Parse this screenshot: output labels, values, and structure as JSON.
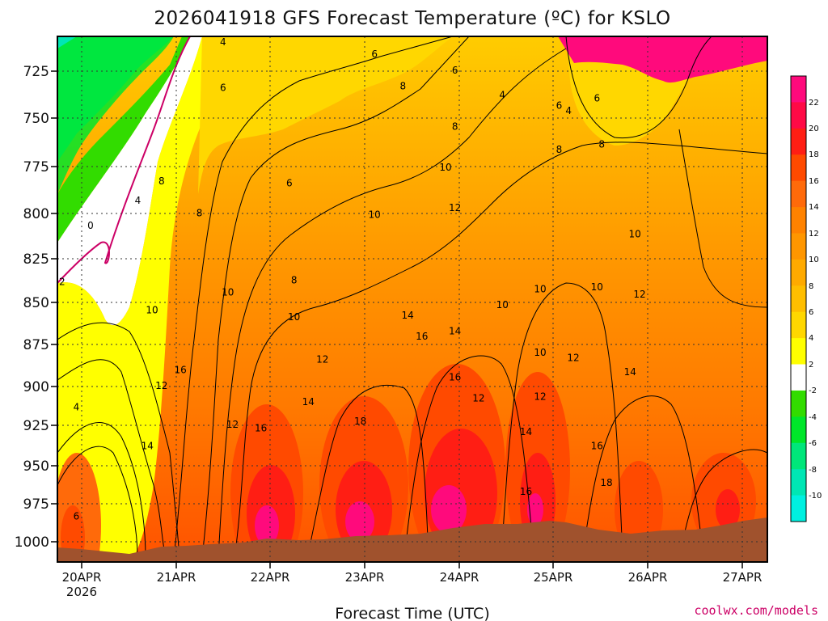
{
  "title": "2026041918 GFS Forecast Temperature (ºC) for KSLO",
  "xlabel": "Forecast Time (UTC)",
  "credit": "coolwx.com/models",
  "colors": {
    "ground": "#a0522d",
    "contour_line": "#000000",
    "zero_line": "#cc0066"
  },
  "chart_data": {
    "type": "heatmap",
    "title": "2026041918 GFS Forecast Temperature (ºC) for KSLO",
    "xlabel": "Forecast Time (UTC)",
    "ylabel": "",
    "x_tick_labels": [
      "20APR",
      "21APR",
      "22APR",
      "23APR",
      "24APR",
      "25APR",
      "26APR",
      "27APR"
    ],
    "x_tick_sublabel": "2026",
    "x_range_days": [
      -0.25,
      7.25
    ],
    "y_tick_labels": [
      "725",
      "750",
      "775",
      "800",
      "825",
      "850",
      "875",
      "900",
      "925",
      "950",
      "975",
      "1000"
    ],
    "y_values_hPa": [
      725,
      750,
      775,
      800,
      825,
      850,
      875,
      900,
      925,
      950,
      975,
      1000
    ],
    "y_range_hPa": [
      713,
      1011
    ],
    "colorbar_labels": [
      "22",
      "20",
      "18",
      "16",
      "14",
      "12",
      "10",
      "8",
      "6",
      "4",
      "2",
      "-2",
      "-4",
      "-6",
      "-8",
      "-10"
    ],
    "colorbar_bins": [
      {
        "min": 22,
        "max": 24,
        "color": "#ff0a7c"
      },
      {
        "min": 20,
        "max": 22,
        "color": "#ff0a46"
      },
      {
        "min": 18,
        "max": 20,
        "color": "#ff1e14"
      },
      {
        "min": 16,
        "max": 18,
        "color": "#ff4a00"
      },
      {
        "min": 14,
        "max": 16,
        "color": "#ff6a0a"
      },
      {
        "min": 12,
        "max": 14,
        "color": "#ff8200"
      },
      {
        "min": 10,
        "max": 12,
        "color": "#ff9600"
      },
      {
        "min": 8,
        "max": 10,
        "color": "#ffaa00"
      },
      {
        "min": 6,
        "max": 8,
        "color": "#ffbe00"
      },
      {
        "min": 4,
        "max": 6,
        "color": "#ffd700"
      },
      {
        "min": 2,
        "max": 4,
        "color": "#ffff00"
      },
      {
        "min": -2,
        "max": 2,
        "color": "#ffffff"
      },
      {
        "min": -4,
        "max": -2,
        "color": "#32dc00"
      },
      {
        "min": -6,
        "max": -4,
        "color": "#00e62a"
      },
      {
        "min": -8,
        "max": -6,
        "color": "#00e67a"
      },
      {
        "min": -10,
        "max": -8,
        "color": "#00e6b4"
      },
      {
        "min": -12,
        "max": -10,
        "color": "#00f0e0"
      }
    ],
    "contour_labels": [
      {
        "text": "4",
        "day": 1.5,
        "p": 718
      },
      {
        "text": "6",
        "day": 1.5,
        "p": 744
      },
      {
        "text": "4",
        "day": 0.6,
        "p": 808
      },
      {
        "text": "0",
        "day": 0.1,
        "p": 822
      },
      {
        "text": "2",
        "day": -0.2,
        "p": 854
      },
      {
        "text": "8",
        "day": 0.85,
        "p": 797
      },
      {
        "text": "8",
        "day": 1.25,
        "p": 815
      },
      {
        "text": "10",
        "day": 0.75,
        "p": 870
      },
      {
        "text": "10",
        "day": 1.55,
        "p": 860
      },
      {
        "text": "12",
        "day": 0.85,
        "p": 913
      },
      {
        "text": "16",
        "day": 1.05,
        "p": 904
      },
      {
        "text": "14",
        "day": 0.7,
        "p": 947
      },
      {
        "text": "4",
        "day": -0.05,
        "p": 925
      },
      {
        "text": "6",
        "day": -0.05,
        "p": 987
      },
      {
        "text": "12",
        "day": 1.6,
        "p": 935
      },
      {
        "text": "16",
        "day": 1.9,
        "p": 937
      },
      {
        "text": "6",
        "day": 2.2,
        "p": 798
      },
      {
        "text": "8",
        "day": 2.25,
        "p": 853
      },
      {
        "text": "10",
        "day": 2.25,
        "p": 874
      },
      {
        "text": "12",
        "day": 2.55,
        "p": 898
      },
      {
        "text": "14",
        "day": 2.4,
        "p": 922
      },
      {
        "text": "18",
        "day": 2.95,
        "p": 933
      },
      {
        "text": "10",
        "day": 3.1,
        "p": 816
      },
      {
        "text": "6",
        "day": 3.1,
        "p": 725
      },
      {
        "text": "8",
        "day": 3.4,
        "p": 743
      },
      {
        "text": "14",
        "day": 3.45,
        "p": 873
      },
      {
        "text": "16",
        "day": 3.6,
        "p": 885
      },
      {
        "text": "14",
        "day": 3.95,
        "p": 882
      },
      {
        "text": "12",
        "day": 3.95,
        "p": 812
      },
      {
        "text": "10",
        "day": 3.85,
        "p": 789
      },
      {
        "text": "8",
        "day": 3.95,
        "p": 766
      },
      {
        "text": "6",
        "day": 3.95,
        "p": 734
      },
      {
        "text": "16",
        "day": 3.95,
        "p": 908
      },
      {
        "text": "12",
        "day": 4.2,
        "p": 920
      },
      {
        "text": "4",
        "day": 4.45,
        "p": 748
      },
      {
        "text": "10",
        "day": 4.45,
        "p": 867
      },
      {
        "text": "10",
        "day": 4.85,
        "p": 894
      },
      {
        "text": "10",
        "day": 4.85,
        "p": 858
      },
      {
        "text": "12",
        "day": 4.85,
        "p": 919
      },
      {
        "text": "14",
        "day": 4.7,
        "p": 939
      },
      {
        "text": "16",
        "day": 4.7,
        "p": 973
      },
      {
        "text": "6",
        "day": 5.05,
        "p": 754
      },
      {
        "text": "4",
        "day": 5.15,
        "p": 757
      },
      {
        "text": "6",
        "day": 5.45,
        "p": 750
      },
      {
        "text": "8",
        "day": 5.05,
        "p": 779
      },
      {
        "text": "8",
        "day": 5.5,
        "p": 776
      },
      {
        "text": "12",
        "day": 5.2,
        "p": 897
      },
      {
        "text": "10",
        "day": 5.45,
        "p": 857
      },
      {
        "text": "10",
        "day": 5.85,
        "p": 827
      },
      {
        "text": "12",
        "day": 5.9,
        "p": 861
      },
      {
        "text": "14",
        "day": 5.8,
        "p": 905
      },
      {
        "text": "16",
        "day": 5.45,
        "p": 947
      },
      {
        "text": "18",
        "day": 5.55,
        "p": 968
      }
    ]
  }
}
